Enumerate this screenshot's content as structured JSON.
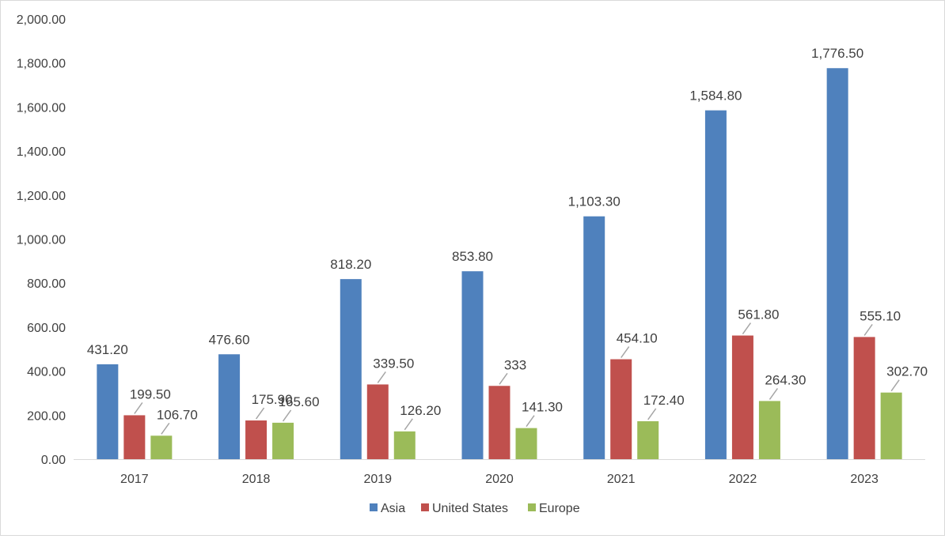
{
  "chart_data": {
    "type": "bar",
    "categories": [
      "2017",
      "2018",
      "2019",
      "2020",
      "2021",
      "2022",
      "2023"
    ],
    "series": [
      {
        "name": "Asia",
        "color": "#4F81BD",
        "values": [
          431.2,
          476.6,
          818.2,
          853.8,
          1103.3,
          1584.8,
          1776.5
        ],
        "labels": [
          "431.20",
          "476.60",
          "818.20",
          "853.80",
          "1,103.30",
          "1,584.80",
          "1,776.50"
        ]
      },
      {
        "name": "United States",
        "color": "#C0504D",
        "values": [
          199.5,
          175.9,
          339.5,
          333,
          454.1,
          561.8,
          555.1
        ],
        "labels": [
          "199.50",
          "175.90",
          "339.50",
          "333",
          "454.10",
          "561.80",
          "555.10"
        ]
      },
      {
        "name": "Europe",
        "color": "#9BBB59",
        "values": [
          106.7,
          165.6,
          126.2,
          141.3,
          172.4,
          264.3,
          302.7
        ],
        "labels": [
          "106.70",
          "165.60",
          "126.20",
          "141.30",
          "172.40",
          "264.30",
          "302.70"
        ]
      }
    ],
    "y_ticks": [
      "0.00",
      "200.00",
      "400.00",
      "600.00",
      "800.00",
      "1,000.00",
      "1,200.00",
      "1,400.00",
      "1,600.00",
      "1,800.00",
      "2,000.00"
    ],
    "ylim": [
      0,
      2000
    ],
    "grid": false,
    "legend_position": "bottom-center",
    "title": "",
    "xlabel": "",
    "ylabel": ""
  }
}
